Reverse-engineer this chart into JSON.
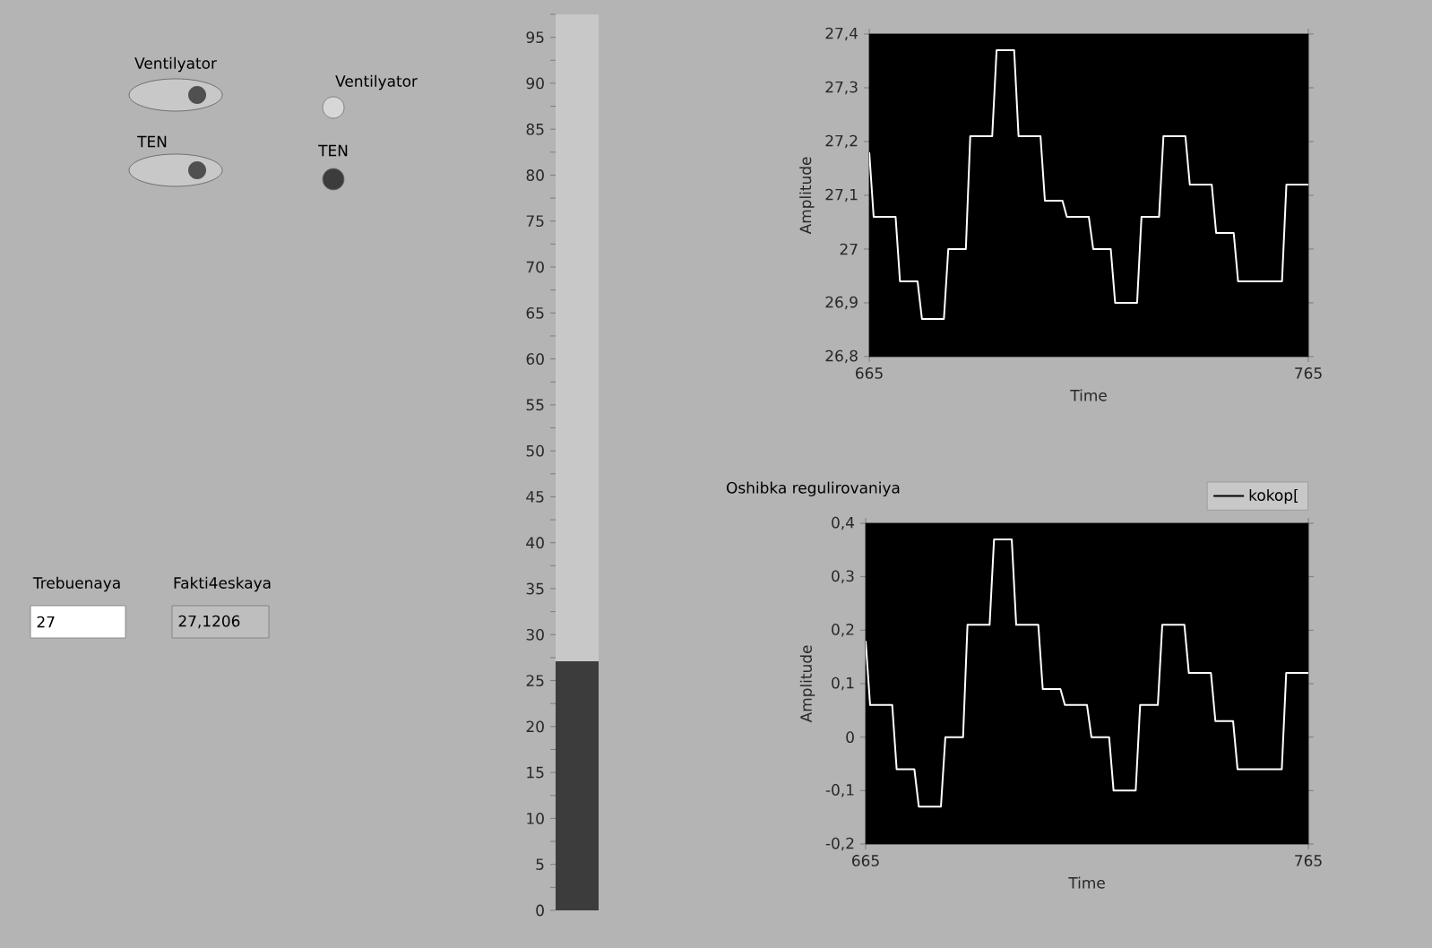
{
  "chart_data": [
    {
      "type": "other",
      "annotations": [
        "Ventilyator",
        "Ventilyator",
        "TEN",
        "TEN",
        "Trebuenaya",
        "Fakti4eskaya",
        "27",
        "27,1206"
      ]
    },
    {
      "type": "bar",
      "categories": [
        null
      ],
      "values": [
        27.1
      ],
      "color": "#3c3c3c",
      "ylim": [
        0,
        97.5
      ],
      "tick_labels": "y",
      "yticks": [
        0,
        {
          "value": 2.5,
          "label": null
        },
        5,
        {
          "value": 7.5,
          "label": null
        },
        10,
        {
          "value": 12.5,
          "label": null
        },
        15,
        {
          "value": 17.5,
          "label": null
        },
        20,
        {
          "value": 22.5,
          "label": null
        },
        25,
        {
          "value": 27.5,
          "label": null
        },
        30,
        {
          "value": 32.5,
          "label": null
        },
        35,
        {
          "value": 37.5,
          "label": null
        },
        40,
        {
          "value": 42.5,
          "label": null
        },
        45,
        {
          "value": 47.5,
          "label": null
        },
        50,
        {
          "value": 52.5,
          "label": null
        },
        55,
        {
          "value": 57.5,
          "label": null
        },
        60,
        {
          "value": 62.5,
          "label": null
        },
        65,
        {
          "value": 67.5,
          "label": null
        },
        70,
        {
          "value": 72.5,
          "label": null
        },
        75,
        {
          "value": 77.5,
          "label": null
        },
        80,
        {
          "value": 82.5,
          "label": null
        },
        85,
        {
          "value": 87.5,
          "label": null
        },
        90,
        {
          "value": 92.5,
          "label": null
        },
        95,
        {
          "value": 97.5,
          "label": null
        }
      ]
    },
    {
      "type": "line",
      "xlabel": "Time",
      "ylabel": "Amplitude",
      "xlim": [
        665,
        765
      ],
      "xticks": [
        665,
        765
      ],
      "ylim": [
        26.8,
        27.4
      ],
      "yticks": [
        {
          "value": 26.8,
          "label": "26,8"
        },
        {
          "value": 26.9,
          "label": "26,9"
        },
        27,
        {
          "value": 27.1,
          "label": "27,1"
        },
        {
          "value": 27.2,
          "label": "27,2"
        },
        {
          "value": 27.3,
          "label": "27,3"
        },
        {
          "value": 27.4,
          "label": "27,4"
        }
      ],
      "series": [
        {
          "color": "#ffffff",
          "x": [
            665,
            666,
            671,
            672,
            676,
            677,
            682,
            683,
            687,
            688,
            693,
            694,
            698,
            699,
            704,
            705,
            709,
            710,
            715,
            716,
            720,
            721,
            726,
            727,
            731,
            732,
            737,
            738,
            743,
            744,
            748,
            749,
            759,
            760,
            765
          ],
          "values": [
            27.18,
            27.06,
            27.06,
            26.94,
            26.94,
            26.87,
            26.87,
            27.0,
            27.0,
            27.21,
            27.21,
            27.37,
            27.37,
            27.21,
            27.21,
            27.09,
            27.09,
            27.06,
            27.06,
            27.0,
            27.0,
            26.9,
            26.9,
            27.06,
            27.06,
            27.21,
            27.21,
            27.12,
            27.12,
            27.03,
            27.03,
            26.94,
            26.94,
            27.12,
            27.12
          ]
        }
      ]
    },
    {
      "type": "line",
      "title": "Oshibka regulirovaniya",
      "xlabel": "Time",
      "ylabel": "Amplitude",
      "xlim": [
        665,
        765
      ],
      "xticks": [
        665,
        765
      ],
      "ylim": [
        -0.2,
        0.4
      ],
      "legend": "top right",
      "yticks": [
        {
          "value": -0.2,
          "label": "-0,2"
        },
        {
          "value": -0.1,
          "label": "-0,1"
        },
        0,
        {
          "value": 0.1,
          "label": "0,1"
        },
        {
          "value": 0.2,
          "label": "0,2"
        },
        {
          "value": 0.3,
          "label": "0,3"
        },
        {
          "value": 0.4,
          "label": "0,4"
        }
      ],
      "series": [
        {
          "name": "kokop[",
          "color": "#ffffff",
          "x": [
            665,
            666,
            671,
            672,
            676,
            677,
            682,
            683,
            687,
            688,
            693,
            694,
            698,
            699,
            704,
            705,
            709,
            710,
            715,
            716,
            720,
            721,
            726,
            727,
            731,
            732,
            737,
            738,
            743,
            744,
            748,
            749,
            759,
            760,
            765
          ],
          "values": [
            0.18,
            0.06,
            0.06,
            -0.06,
            -0.06,
            -0.13,
            -0.13,
            0.0,
            0.0,
            0.21,
            0.21,
            0.37,
            0.37,
            0.21,
            0.21,
            0.09,
            0.09,
            0.06,
            0.06,
            0.0,
            0.0,
            -0.1,
            -0.1,
            0.06,
            0.06,
            0.21,
            0.21,
            0.12,
            0.12,
            0.03,
            0.03,
            -0.06,
            -0.06,
            0.12,
            0.12
          ]
        }
      ]
    }
  ]
}
